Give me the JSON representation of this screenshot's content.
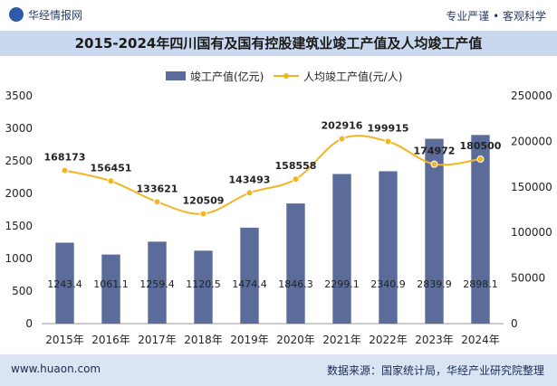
{
  "header": {
    "brand": "华经情报网",
    "tagline": "专业严谨 • 客观科学"
  },
  "chart_data": {
    "type": "bar",
    "title": "2015-2024年四川国有及国有控股建筑业竣工产值及人均竣工产值",
    "categories": [
      "2015年",
      "2016年",
      "2017年",
      "2018年",
      "2019年",
      "2020年",
      "2021年",
      "2022年",
      "2023年",
      "2024年"
    ],
    "series": [
      {
        "name": "竣工产值(亿元)",
        "type": "bar",
        "axis": "left",
        "values": [
          1243.4,
          1061.1,
          1259.4,
          1120.5,
          1474.4,
          1846.3,
          2299.1,
          2340.9,
          2839.9,
          2898.1
        ],
        "labels": [
          "1243.4",
          "1061.1",
          "1259.4",
          "1120.5",
          "1474.4",
          "1846.3",
          "2299.1",
          "2340.9",
          "2839.9",
          "2898.1"
        ]
      },
      {
        "name": "人均竣工产值(元/人)",
        "type": "line",
        "axis": "right",
        "values": [
          168173,
          156451,
          133621,
          120509,
          143493,
          158558,
          202916,
          199915,
          174972,
          180500
        ],
        "labels": [
          "168173",
          "156451",
          "133621",
          "120509",
          "143493",
          "158558",
          "202916",
          "199915",
          "174972",
          "180500"
        ]
      }
    ],
    "y_left": {
      "min": 0,
      "max": 3500,
      "ticks": [
        "0",
        "500",
        "1000",
        "1500",
        "2000",
        "2500",
        "3000",
        "3500"
      ]
    },
    "y_right": {
      "min": 0,
      "max": 250000,
      "ticks": [
        "0",
        "50000",
        "100000",
        "150000",
        "200000",
        "250000"
      ]
    },
    "grid": false,
    "legend_position": "top-center",
    "colors": {
      "bar": "#5b6c9a",
      "line": "#f4b522",
      "title_band": "#c9d8ee",
      "footer": "#dbe4f3"
    }
  },
  "footer": {
    "url": "www.huaon.com",
    "source": "数据来源：国家统计局，华经产业研究院整理"
  }
}
